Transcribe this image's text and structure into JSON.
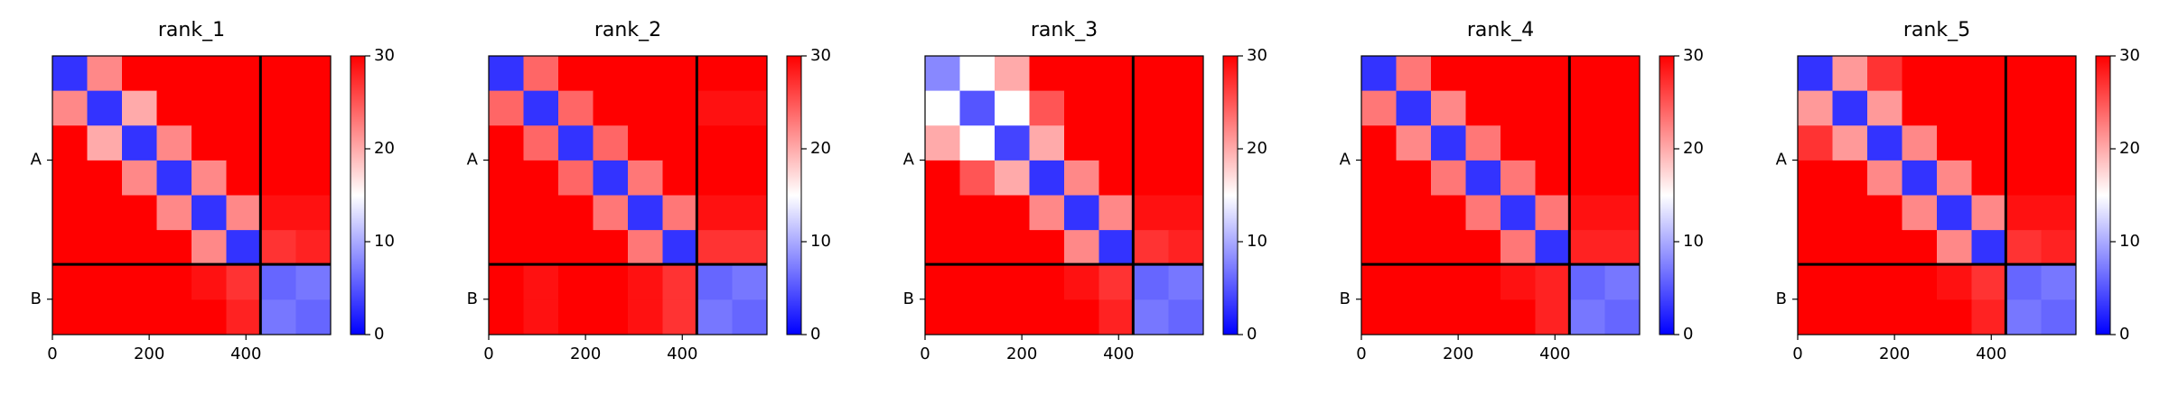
{
  "chart_data": [
    {
      "type": "heatmap",
      "title": "rank_1",
      "colormap": "bwr",
      "xlim": [
        0,
        575
      ],
      "ylim": [
        575,
        0
      ],
      "xticks": [
        0,
        200,
        400
      ],
      "yticks": [
        {
          "value": 215,
          "label": "A"
        },
        {
          "value": 502,
          "label": "B"
        }
      ],
      "separators": [
        430
      ],
      "clim": [
        0,
        30
      ],
      "cticks": [
        0,
        10,
        20,
        30
      ],
      "matrix": [
        [
          3,
          22,
          30,
          30,
          30,
          30,
          30,
          30
        ],
        [
          22,
          3,
          20,
          30,
          30,
          30,
          30,
          30
        ],
        [
          30,
          20,
          3,
          22,
          30,
          30,
          30,
          30
        ],
        [
          30,
          30,
          22,
          3,
          22,
          30,
          30,
          30
        ],
        [
          30,
          30,
          30,
          22,
          3,
          22,
          29,
          29
        ],
        [
          30,
          30,
          30,
          30,
          22,
          3,
          27,
          28
        ],
        [
          30,
          30,
          30,
          30,
          29,
          27,
          6,
          7
        ],
        [
          30,
          30,
          30,
          30,
          30,
          28,
          7,
          6
        ]
      ]
    },
    {
      "type": "heatmap",
      "title": "rank_2",
      "colormap": "bwr",
      "xlim": [
        0,
        575
      ],
      "ylim": [
        575,
        0
      ],
      "xticks": [
        0,
        200,
        400
      ],
      "yticks": [
        {
          "value": 215,
          "label": "A"
        },
        {
          "value": 502,
          "label": "B"
        }
      ],
      "separators": [
        430
      ],
      "clim": [
        0,
        30
      ],
      "cticks": [
        0,
        10,
        20,
        30
      ],
      "matrix": [
        [
          3,
          24,
          30,
          30,
          30,
          30,
          30,
          30
        ],
        [
          24,
          3,
          24,
          30,
          30,
          30,
          29,
          29
        ],
        [
          30,
          24,
          3,
          24,
          30,
          30,
          30,
          30
        ],
        [
          30,
          30,
          24,
          3,
          23,
          30,
          30,
          30
        ],
        [
          30,
          30,
          30,
          23,
          3,
          23,
          29,
          29
        ],
        [
          30,
          30,
          30,
          30,
          23,
          3,
          27,
          27
        ],
        [
          30,
          29,
          30,
          30,
          29,
          27,
          6,
          7
        ],
        [
          30,
          29,
          30,
          30,
          29,
          27,
          7,
          6
        ]
      ]
    },
    {
      "type": "heatmap",
      "title": "rank_3",
      "colormap": "bwr",
      "xlim": [
        0,
        575
      ],
      "ylim": [
        575,
        0
      ],
      "xticks": [
        0,
        200,
        400
      ],
      "yticks": [
        {
          "value": 215,
          "label": "A"
        },
        {
          "value": 502,
          "label": "B"
        }
      ],
      "separators": [
        430
      ],
      "clim": [
        0,
        30
      ],
      "cticks": [
        0,
        10,
        20,
        30
      ],
      "matrix": [
        [
          8,
          15,
          20,
          30,
          30,
          30,
          30,
          30
        ],
        [
          15,
          5,
          15,
          25,
          30,
          30,
          30,
          30
        ],
        [
          20,
          15,
          4,
          20,
          30,
          30,
          30,
          30
        ],
        [
          30,
          25,
          20,
          3,
          22,
          30,
          30,
          30
        ],
        [
          30,
          30,
          30,
          22,
          3,
          22,
          29,
          29
        ],
        [
          30,
          30,
          30,
          30,
          22,
          3,
          27,
          28
        ],
        [
          30,
          30,
          30,
          30,
          29,
          27,
          6,
          7
        ],
        [
          30,
          30,
          30,
          30,
          30,
          28,
          7,
          6
        ]
      ]
    },
    {
      "type": "heatmap",
      "title": "rank_4",
      "colormap": "bwr",
      "xlim": [
        0,
        575
      ],
      "ylim": [
        575,
        0
      ],
      "xticks": [
        0,
        200,
        400
      ],
      "yticks": [
        {
          "value": 215,
          "label": "A"
        },
        {
          "value": 502,
          "label": "B"
        }
      ],
      "separators": [
        430
      ],
      "clim": [
        0,
        30
      ],
      "cticks": [
        0,
        10,
        20,
        30
      ],
      "matrix": [
        [
          3,
          23,
          30,
          30,
          30,
          30,
          30,
          30
        ],
        [
          23,
          3,
          22,
          30,
          30,
          30,
          30,
          30
        ],
        [
          30,
          22,
          3,
          23,
          30,
          30,
          30,
          30
        ],
        [
          30,
          30,
          23,
          3,
          23,
          30,
          30,
          30
        ],
        [
          30,
          30,
          30,
          23,
          3,
          23,
          29,
          29
        ],
        [
          30,
          30,
          30,
          30,
          23,
          3,
          28,
          28
        ],
        [
          30,
          30,
          30,
          30,
          29,
          28,
          6,
          7
        ],
        [
          30,
          30,
          30,
          30,
          30,
          28,
          7,
          6
        ]
      ]
    },
    {
      "type": "heatmap",
      "title": "rank_5",
      "colormap": "bwr",
      "xlim": [
        0,
        575
      ],
      "ylim": [
        575,
        0
      ],
      "xticks": [
        0,
        200,
        400
      ],
      "yticks": [
        {
          "value": 215,
          "label": "A"
        },
        {
          "value": 502,
          "label": "B"
        }
      ],
      "separators": [
        430
      ],
      "clim": [
        0,
        30
      ],
      "cticks": [
        0,
        10,
        20,
        30
      ],
      "matrix": [
        [
          3,
          21,
          27,
          30,
          30,
          30,
          30,
          30
        ],
        [
          21,
          3,
          21,
          30,
          30,
          30,
          30,
          30
        ],
        [
          27,
          21,
          3,
          22,
          30,
          30,
          30,
          30
        ],
        [
          30,
          30,
          22,
          3,
          22,
          30,
          30,
          30
        ],
        [
          30,
          30,
          30,
          22,
          3,
          22,
          29,
          29
        ],
        [
          30,
          30,
          30,
          30,
          22,
          3,
          27,
          28
        ],
        [
          30,
          30,
          30,
          30,
          29,
          27,
          6,
          7
        ],
        [
          30,
          30,
          30,
          30,
          30,
          28,
          7,
          6
        ]
      ]
    }
  ]
}
